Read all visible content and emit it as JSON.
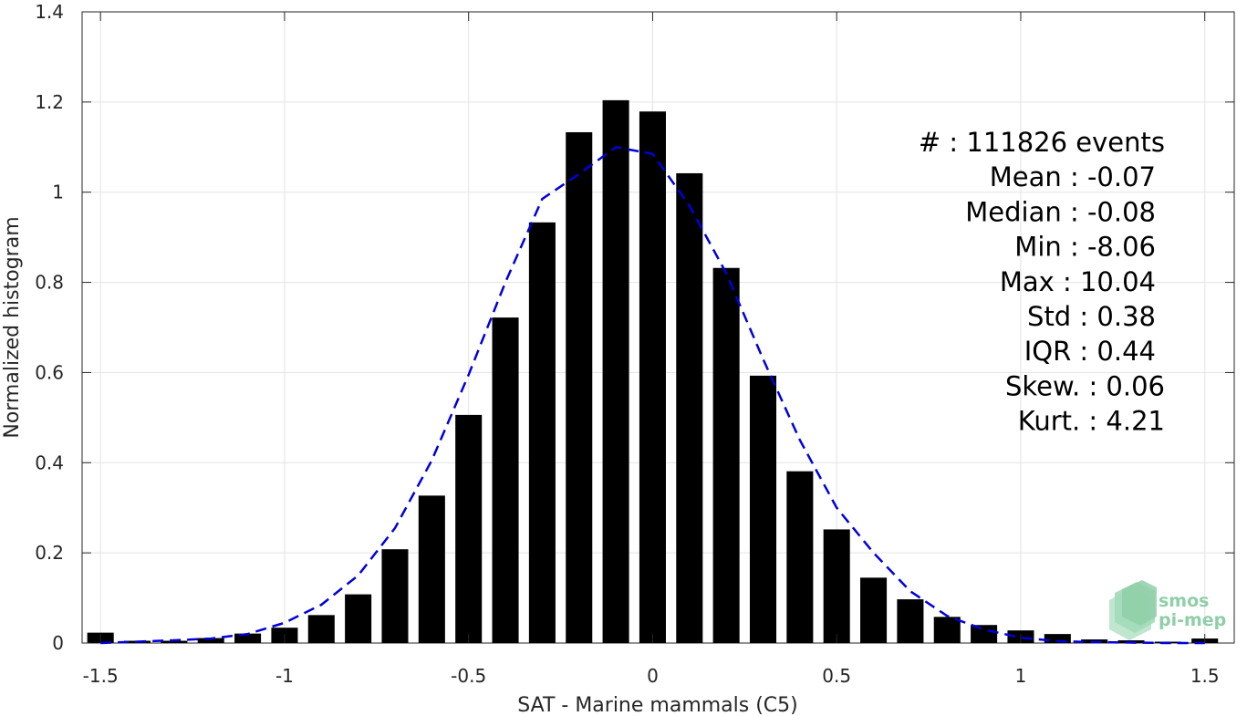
{
  "chart_data": {
    "type": "bar",
    "xlabel": "SAT - Marine mammals (C5)",
    "ylabel": "Normalized histogram",
    "xlim": [
      -1.55,
      1.58
    ],
    "ylim": [
      0,
      1.4
    ],
    "grid": true,
    "xticks": [
      -1.5,
      -1,
      -0.5,
      0,
      0.5,
      1,
      1.5
    ],
    "xtick_labels": [
      "-1.5",
      "-1",
      "-0.5",
      "0",
      "0.5",
      "1",
      "1.5"
    ],
    "yticks": [
      0,
      0.2,
      0.4,
      0.6,
      0.8,
      1,
      1.2,
      1.4
    ],
    "ytick_labels": [
      "0",
      "0.2",
      "0.4",
      "0.6",
      "0.8",
      "1",
      "1.2",
      "1.4"
    ],
    "bars": {
      "x": [
        -1.5,
        -1.4,
        -1.3,
        -1.2,
        -1.1,
        -1.0,
        -0.9,
        -0.8,
        -0.7,
        -0.6,
        -0.5,
        -0.4,
        -0.3,
        -0.2,
        -0.1,
        0.0,
        0.1,
        0.2,
        0.3,
        0.4,
        0.5,
        0.6,
        0.7,
        0.8,
        0.9,
        1.0,
        1.1,
        1.2,
        1.3,
        1.4,
        1.5
      ],
      "values": [
        0.023,
        0.005,
        0.005,
        0.011,
        0.021,
        0.034,
        0.062,
        0.108,
        0.208,
        0.327,
        0.506,
        0.722,
        0.933,
        1.133,
        1.204,
        1.179,
        1.042,
        0.832,
        0.593,
        0.381,
        0.252,
        0.145,
        0.097,
        0.058,
        0.04,
        0.028,
        0.02,
        0.008,
        0.006,
        0.003,
        0.01
      ],
      "color": "#000000"
    },
    "fit_curve": {
      "style": "dashed",
      "color": "#0000dd",
      "x": [
        -1.5,
        -1.4,
        -1.3,
        -1.2,
        -1.1,
        -1.0,
        -0.9,
        -0.8,
        -0.7,
        -0.6,
        -0.5,
        -0.4,
        -0.3,
        -0.2,
        -0.1,
        0.0,
        0.1,
        0.2,
        0.3,
        0.4,
        0.5,
        0.6,
        0.7,
        0.8,
        0.9,
        1.0,
        1.1,
        1.2,
        1.3,
        1.4,
        1.5
      ],
      "y": [
        0.0,
        0.003,
        0.006,
        0.01,
        0.02,
        0.045,
        0.085,
        0.15,
        0.255,
        0.405,
        0.595,
        0.8,
        0.985,
        1.04,
        1.1,
        1.085,
        0.97,
        0.82,
        0.63,
        0.45,
        0.3,
        0.2,
        0.115,
        0.06,
        0.03,
        0.012,
        0.004,
        0.002,
        0.001,
        0.0,
        0.0
      ]
    },
    "annotations": [
      "#  : 111826 events",
      "Mean : -0.07",
      "Median : -0.08",
      "Min : -8.06",
      "Max : 10.04",
      "Std : 0.38",
      "IQR : 0.44",
      "Skew. : 0.06",
      "Kurt. : 4.21"
    ]
  },
  "logo": {
    "icon": "smos-pimep-logo",
    "line1": "smos",
    "line2": "pi-mep",
    "color": "#8fcfa8"
  }
}
